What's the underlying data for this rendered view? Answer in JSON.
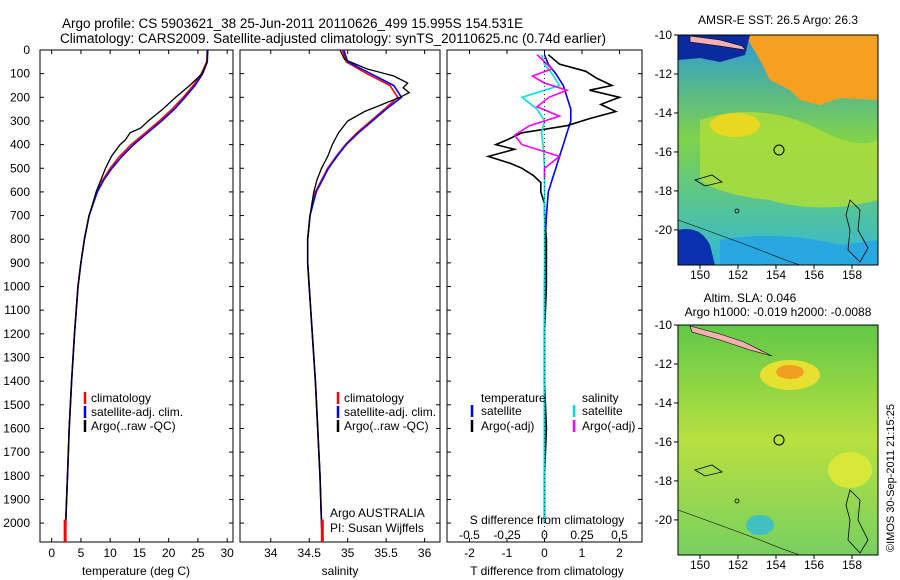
{
  "title_line1": "Argo profile: CS 5903621_38 25-Jun-2011 20110626_499 15.995S 154.531E",
  "title_line2": "Climatology: CARS2009. Satellite-adjusted climatology: synTS_20110625.nc (0.74d earlier)",
  "colors": {
    "clim": "#ff0000",
    "sat": "#0000ff",
    "argo": "#000000",
    "sal_sat": "#00e0e0",
    "sal_argo": "#ff00ff"
  },
  "depth_ticks": [
    0,
    100,
    200,
    300,
    400,
    500,
    600,
    700,
    800,
    900,
    1000,
    1100,
    1200,
    1300,
    1400,
    1500,
    1600,
    1700,
    1800,
    1900,
    2000
  ],
  "chart_data": [
    {
      "type": "line",
      "title": "",
      "xlabel": "temperature (deg C)",
      "ylabel": "depth",
      "xlim": [
        -2,
        31
      ],
      "ylim": [
        2080,
        0
      ],
      "xticks": [
        0,
        5,
        10,
        15,
        20,
        25,
        30
      ],
      "legend": [
        "climatology",
        "satellite-adj. clim.",
        "Argo(..raw -QC)"
      ],
      "series": [
        {
          "name": "climatology",
          "depth": [
            0,
            50,
            100,
            150,
            200,
            250,
            300,
            350,
            400,
            450,
            500,
            550,
            600,
            700,
            800,
            900,
            1000,
            1200,
            1400,
            1600,
            1800,
            2000,
            2080
          ],
          "values": [
            26.6,
            26.5,
            25.6,
            24.2,
            22.5,
            20.6,
            18.4,
            16.0,
            13.6,
            11.6,
            10.0,
            8.7,
            7.7,
            6.4,
            5.6,
            5.0,
            4.5,
            3.9,
            3.4,
            3.0,
            2.7,
            2.4,
            2.3
          ]
        },
        {
          "name": "satellite-adj. clim.",
          "depth": [
            0,
            50,
            100,
            150,
            200,
            250,
            300,
            350,
            400,
            450,
            500,
            550,
            600,
            700,
            800,
            900,
            1000,
            1200,
            1400,
            1600,
            1800,
            2000,
            2080
          ],
          "values": [
            26.6,
            26.6,
            25.8,
            24.5,
            22.8,
            21.0,
            18.8,
            16.4,
            14.0,
            12.0,
            10.3,
            8.9,
            7.8,
            6.4,
            5.6,
            5.0,
            4.5,
            3.9,
            3.4,
            3.0,
            2.7,
            2.4,
            2.3
          ]
        },
        {
          "name": "Argo(..raw -QC)",
          "depth": [
            0,
            50,
            100,
            150,
            200,
            250,
            300,
            330,
            350,
            380,
            400,
            450,
            500,
            550,
            600,
            650,
            700,
            800,
            900,
            1000,
            1200,
            1400,
            1600,
            1800,
            2000,
            2060
          ],
          "values": [
            26.7,
            26.6,
            25.7,
            23.6,
            21.2,
            19.0,
            16.5,
            15.2,
            13.4,
            12.6,
            11.7,
            10.2,
            9.2,
            8.4,
            7.6,
            7.0,
            6.4,
            5.6,
            5.0,
            4.5,
            3.9,
            3.4,
            3.0,
            2.7,
            2.4,
            2.3
          ]
        }
      ]
    },
    {
      "type": "line",
      "title": "",
      "xlabel": "salinity",
      "ylabel": "depth",
      "xlim": [
        33.6,
        36.2
      ],
      "ylim": [
        2080,
        0
      ],
      "xticks": [
        34,
        34.5,
        35,
        35.5,
        36
      ],
      "legend": [
        "climatology",
        "satellite-adj. clim.",
        "Argo(..raw -QC)"
      ],
      "annotation_line1": "Argo AUSTRALIA",
      "annotation_line2": "PI: Susan Wijffels",
      "series": [
        {
          "name": "climatology",
          "depth": [
            0,
            50,
            100,
            150,
            200,
            250,
            300,
            350,
            400,
            450,
            500,
            600,
            700,
            800,
            900,
            1000,
            1200,
            1400,
            1600,
            1800,
            2000,
            2080
          ],
          "values": [
            34.93,
            34.98,
            35.25,
            35.55,
            35.65,
            35.48,
            35.3,
            35.12,
            34.97,
            34.85,
            34.74,
            34.58,
            34.51,
            34.48,
            34.48,
            34.5,
            34.54,
            34.58,
            34.61,
            34.64,
            34.66,
            34.67
          ]
        },
        {
          "name": "satellite-adj. clim.",
          "depth": [
            0,
            50,
            100,
            150,
            200,
            250,
            300,
            350,
            400,
            450,
            500,
            600,
            700,
            800,
            900,
            1000,
            1200,
            1400,
            1600,
            1800,
            2000,
            2080
          ],
          "values": [
            34.95,
            35.0,
            35.3,
            35.6,
            35.7,
            35.5,
            35.32,
            35.14,
            34.98,
            34.86,
            34.75,
            34.59,
            34.51,
            34.48,
            34.48,
            34.5,
            34.54,
            34.58,
            34.61,
            34.64,
            34.66,
            34.67
          ]
        },
        {
          "name": "Argo(..raw -QC)",
          "depth": [
            0,
            40,
            80,
            110,
            140,
            160,
            180,
            200,
            230,
            260,
            300,
            350,
            400,
            450,
            500,
            550,
            600,
            700,
            800,
            900,
            1000,
            1200,
            1400,
            1600,
            1800,
            2000,
            2060
          ],
          "values": [
            34.9,
            34.96,
            35.25,
            35.6,
            35.78,
            35.72,
            35.8,
            35.68,
            35.45,
            35.22,
            35.0,
            34.88,
            34.8,
            34.74,
            34.66,
            34.6,
            34.56,
            34.51,
            34.48,
            34.48,
            34.5,
            34.54,
            34.58,
            34.61,
            34.64,
            34.66,
            34.67
          ]
        }
      ]
    },
    {
      "type": "line",
      "title": "",
      "xlabel": "T difference from climatology",
      "xlabel_top": "S difference from climatology",
      "xlim": [
        -2.6,
        2.6
      ],
      "ylim": [
        2080,
        0
      ],
      "xticks": [
        -2,
        -1,
        0,
        1,
        2
      ],
      "xticks_top": [
        "-0.5",
        "-0.25",
        "0",
        "0.25",
        "0.5"
      ],
      "legend_temperature_header": "temperature",
      "legend_salinity_header": "salinity",
      "legend": [
        "satellite",
        "Argo(-adj)",
        "satellite",
        "Argo(-adj)"
      ],
      "series": [
        {
          "name": "T satellite",
          "depth": [
            20,
            60,
            100,
            150,
            200,
            250,
            300,
            350,
            400,
            450,
            500,
            550,
            600,
            700,
            800,
            1000,
            1500,
            2000
          ],
          "values": [
            0.0,
            0.1,
            0.3,
            0.5,
            0.6,
            0.7,
            0.7,
            0.6,
            0.5,
            0.4,
            0.3,
            0.2,
            0.1,
            0.05,
            0.02,
            0.0,
            0.0,
            0.0
          ]
        },
        {
          "name": "T Argo(-adj)",
          "depth": [
            20,
            60,
            90,
            120,
            150,
            170,
            200,
            230,
            260,
            290,
            320,
            350,
            380,
            400,
            420,
            450,
            480,
            500,
            530,
            560,
            600,
            650,
            700,
            800,
            1000,
            1200,
            1400,
            1600,
            1800,
            2000
          ],
          "values": [
            0.1,
            0.4,
            1.1,
            1.4,
            1.8,
            1.2,
            2.0,
            1.5,
            1.9,
            1.2,
            0.6,
            -0.6,
            -1.0,
            -1.3,
            -0.8,
            -1.5,
            -0.9,
            -0.6,
            -0.3,
            -0.1,
            -0.1,
            0.0,
            0.0,
            0.05,
            0.05,
            0.0,
            0.0,
            0.05,
            0.0,
            0.0
          ]
        },
        {
          "name": "S satellite",
          "depth": [
            20,
            60,
            100,
            150,
            200,
            250,
            300,
            350,
            400,
            500,
            600,
            800,
            1000,
            1500,
            2000
          ],
          "values": [
            -0.02,
            0.0,
            0.05,
            0.1,
            -0.15,
            -0.05,
            0.0,
            -0.02,
            -0.01,
            0.0,
            0.0,
            0.0,
            0.0,
            0.0,
            0.0
          ]
        },
        {
          "name": "S Argo(-adj)",
          "depth": [
            20,
            50,
            80,
            110,
            140,
            170,
            200,
            240,
            280,
            320,
            360,
            400,
            450,
            500,
            540
          ],
          "values": [
            -0.05,
            0.0,
            0.05,
            -0.08,
            0.0,
            0.15,
            0.03,
            -0.05,
            0.1,
            -0.1,
            -0.2,
            -0.15,
            0.1,
            0.0,
            0.0
          ]
        }
      ]
    }
  ],
  "map1": {
    "title": "AMSR-E SST: 26.5 Argo: 26.3",
    "yticks": [
      "-10",
      "-12",
      "-14",
      "-16",
      "-18",
      "-20"
    ],
    "xticks": [
      "150",
      "152",
      "154",
      "156",
      "158"
    ]
  },
  "map2": {
    "title_line1": "Altim. SLA: 0.046",
    "title_line2": "Argo h1000: -0.019 h2000: -0.0088",
    "yticks": [
      "-10",
      "-12",
      "-14",
      "-16",
      "-18",
      "-20"
    ],
    "xticks": [
      "150",
      "152",
      "154",
      "156",
      "158"
    ]
  },
  "credit": "©IMOS 30-Sep-2011 21:15:25"
}
